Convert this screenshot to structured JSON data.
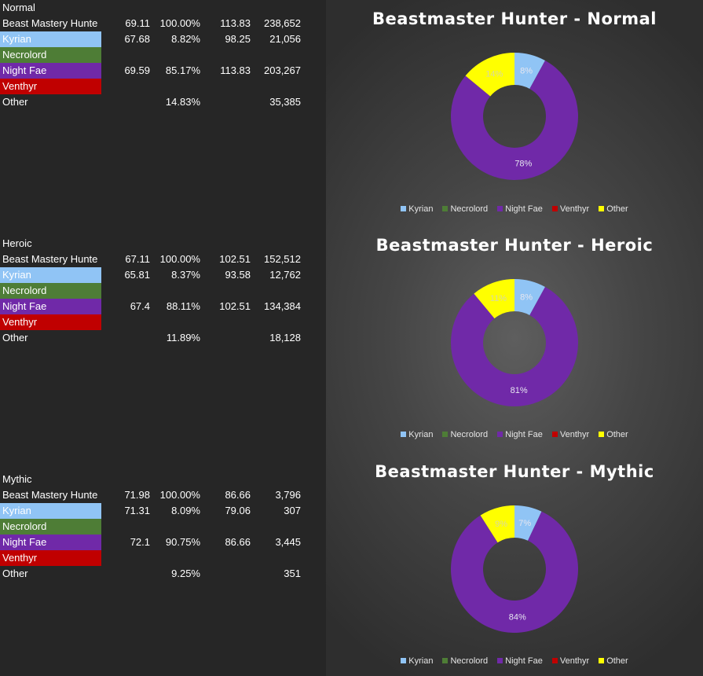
{
  "colors": {
    "Kyrian": "#90c4f5",
    "Necrolord": "#4e7d36",
    "Night Fae": "#7029a8",
    "Venthyr": "#c00000",
    "Other": "#ffff00"
  },
  "sections": [
    {
      "title": "Normal",
      "rows": [
        {
          "name": "Beast Mastery Hunte",
          "c1": "69.11",
          "c2": "100.00%",
          "c3": "113.83",
          "c4": "238,652"
        },
        {
          "name": "Kyrian",
          "c1": "67.68",
          "c2": "8.82%",
          "c3": "98.25",
          "c4": "21,056"
        },
        {
          "name": "Necrolord",
          "c1": "",
          "c2": "",
          "c3": "",
          "c4": ""
        },
        {
          "name": "Night Fae",
          "c1": "69.59",
          "c2": "85.17%",
          "c3": "113.83",
          "c4": "203,267"
        },
        {
          "name": "Venthyr",
          "c1": "",
          "c2": "",
          "c3": "",
          "c4": ""
        },
        {
          "name": "Other",
          "c1": "",
          "c2": "14.83%",
          "c3": "",
          "c4": "35,385"
        }
      ]
    },
    {
      "title": "Heroic",
      "rows": [
        {
          "name": "Beast Mastery Hunte",
          "c1": "67.11",
          "c2": "100.00%",
          "c3": "102.51",
          "c4": "152,512"
        },
        {
          "name": "Kyrian",
          "c1": "65.81",
          "c2": "8.37%",
          "c3": "93.58",
          "c4": "12,762"
        },
        {
          "name": "Necrolord",
          "c1": "",
          "c2": "",
          "c3": "",
          "c4": ""
        },
        {
          "name": "Night Fae",
          "c1": "67.4",
          "c2": "88.11%",
          "c3": "102.51",
          "c4": "134,384"
        },
        {
          "name": "Venthyr",
          "c1": "",
          "c2": "",
          "c3": "",
          "c4": ""
        },
        {
          "name": "Other",
          "c1": "",
          "c2": "11.89%",
          "c3": "",
          "c4": "18,128"
        }
      ]
    },
    {
      "title": "Mythic",
      "rows": [
        {
          "name": "Beast Mastery Hunte",
          "c1": "71.98",
          "c2": "100.00%",
          "c3": "86.66",
          "c4": "3,796"
        },
        {
          "name": "Kyrian",
          "c1": "71.31",
          "c2": "8.09%",
          "c3": "79.06",
          "c4": "307"
        },
        {
          "name": "Necrolord",
          "c1": "",
          "c2": "",
          "c3": "",
          "c4": ""
        },
        {
          "name": "Night Fae",
          "c1": "72.1",
          "c2": "90.75%",
          "c3": "86.66",
          "c4": "3,445"
        },
        {
          "name": "Venthyr",
          "c1": "",
          "c2": "",
          "c3": "",
          "c4": ""
        },
        {
          "name": "Other",
          "c1": "",
          "c2": "9.25%",
          "c3": "",
          "c4": "351"
        }
      ]
    }
  ],
  "chart_data": [
    {
      "type": "pie",
      "title": "Beastmaster Hunter - Normal",
      "labels": [
        "Kyrian",
        "Necrolord",
        "Night Fae",
        "Venthyr",
        "Other"
      ],
      "values": [
        8,
        0,
        78,
        0,
        14
      ],
      "data_labels": [
        "8%",
        "",
        "78%",
        "",
        "14%"
      ],
      "legend": "bottom"
    },
    {
      "type": "pie",
      "title": "Beastmaster Hunter - Heroic",
      "labels": [
        "Kyrian",
        "Necrolord",
        "Night Fae",
        "Venthyr",
        "Other"
      ],
      "values": [
        8,
        0,
        81,
        0,
        11
      ],
      "data_labels": [
        "8%",
        "",
        "81%",
        "",
        "11%"
      ],
      "legend": "bottom"
    },
    {
      "type": "pie",
      "title": "Beastmaster Hunter - Mythic",
      "labels": [
        "Kyrian",
        "Necrolord",
        "Night Fae",
        "Venthyr",
        "Other"
      ],
      "values": [
        7,
        0,
        84,
        0,
        9
      ],
      "data_labels": [
        "7%",
        "",
        "84%",
        "",
        "9%"
      ],
      "legend": "bottom"
    }
  ]
}
